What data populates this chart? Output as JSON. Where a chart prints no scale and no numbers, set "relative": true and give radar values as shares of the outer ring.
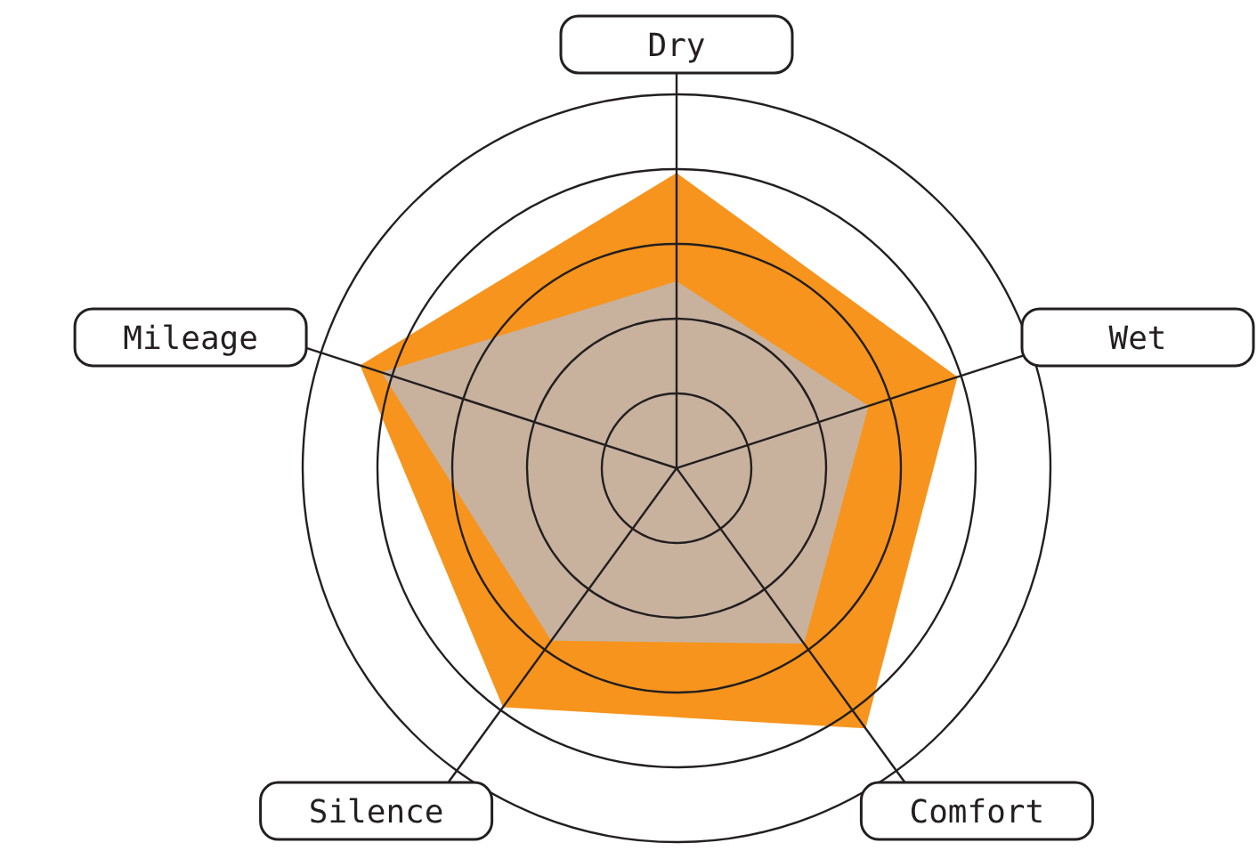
{
  "chart_data": {
    "type": "radar",
    "relative": true,
    "grid": true,
    "categories": [
      "Dry",
      "Wet",
      "Comfort",
      "Silence",
      "Mileage"
    ],
    "series": [
      {
        "color": "#f7941d",
        "values": [
          0.79,
          0.79,
          0.86,
          0.79,
          0.89
        ]
      },
      {
        "color": "#c8b29e",
        "values": [
          0.5,
          0.54,
          0.58,
          0.57,
          0.83
        ]
      }
    ]
  }
}
